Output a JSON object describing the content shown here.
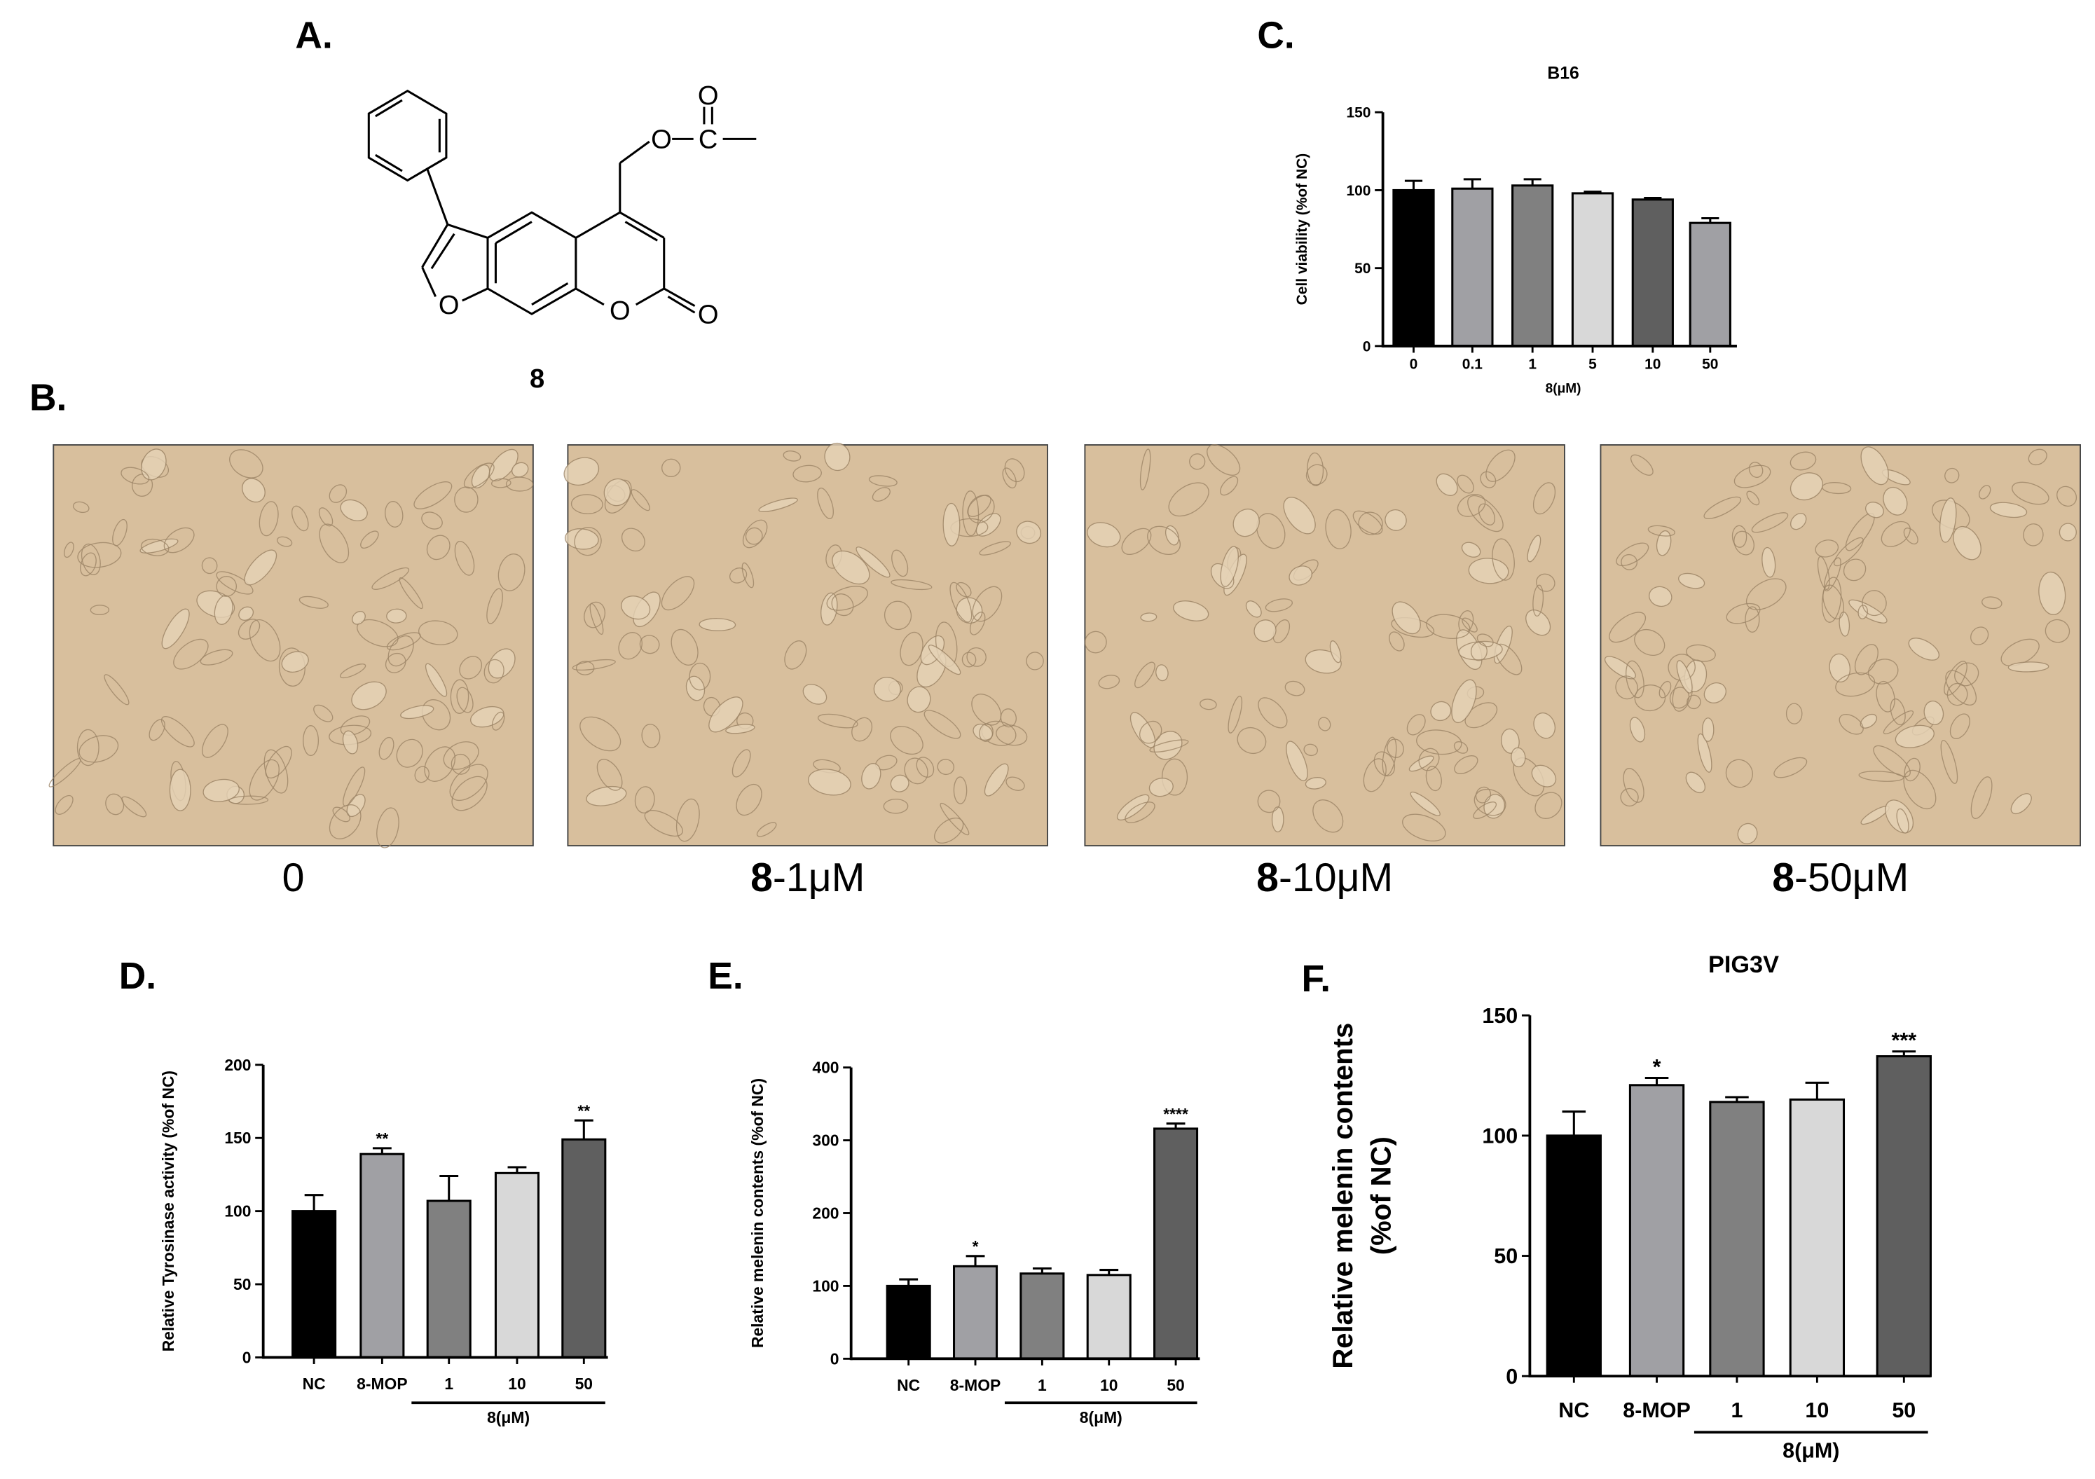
{
  "panels": {
    "A": {
      "label": "A.",
      "compound": "8",
      "atoms": [
        "O",
        "C",
        "O",
        "O",
        "O",
        "O"
      ]
    },
    "B": {
      "label": "B.",
      "images": [
        {
          "label": "0"
        },
        {
          "compound": "8",
          "dose": "-1μM"
        },
        {
          "compound": "8",
          "dose": "-10μM"
        },
        {
          "compound": "8",
          "dose": "-50μM"
        }
      ]
    }
  },
  "chart_data": [
    {
      "type": "bar",
      "panel_label": "C.",
      "title": "B16",
      "y_label": "Cell viability (%of NC)",
      "x_label": "8(μM)",
      "categories": [
        "0",
        "0.1",
        "1",
        "5",
        "10",
        "50"
      ],
      "values": [
        100,
        101,
        103,
        98,
        94,
        79
      ],
      "errors": [
        6,
        6,
        4,
        1,
        1,
        3
      ],
      "colors": [
        "#000000",
        "#a0a0a4",
        "#808080",
        "#d8d8d8",
        "#5f5f5f",
        "#a0a0a4"
      ],
      "ylim": [
        0,
        150
      ],
      "yticks": [
        0,
        50,
        100,
        150
      ]
    },
    {
      "type": "bar",
      "panel_label": "D.",
      "y_label": "Relative Tyrosinase activity (%of NC)",
      "group_label": "8(μM)",
      "categories": [
        "NC",
        "8-MOP",
        "1",
        "10",
        "50"
      ],
      "values": [
        100,
        139,
        107,
        126,
        149
      ],
      "errors": [
        11,
        4,
        17,
        4,
        13
      ],
      "annotations": [
        null,
        "**",
        null,
        null,
        "**"
      ],
      "colors": [
        "#000000",
        "#a0a0a4",
        "#808080",
        "#d8d8d8",
        "#5f5f5f"
      ],
      "ylim": [
        0,
        200
      ],
      "yticks": [
        0,
        50,
        100,
        150,
        200
      ]
    },
    {
      "type": "bar",
      "panel_label": "E.",
      "y_label": "Relative melenin contents (%of NC)",
      "group_label": "8(μM)",
      "categories": [
        "NC",
        "8-MOP",
        "1",
        "10",
        "50"
      ],
      "values": [
        100,
        127,
        117,
        115,
        316
      ],
      "errors": [
        9,
        14,
        7,
        7,
        7
      ],
      "annotations": [
        null,
        "*",
        null,
        null,
        "****"
      ],
      "colors": [
        "#000000",
        "#a0a0a4",
        "#808080",
        "#d8d8d8",
        "#5f5f5f"
      ],
      "ylim": [
        0,
        400
      ],
      "yticks": [
        0,
        100,
        200,
        300,
        400
      ]
    },
    {
      "type": "bar",
      "panel_label": "F.",
      "title": "PIG3V",
      "y_label": [
        "Relative melenin contents",
        "(%of NC)"
      ],
      "group_label": "8(μM)",
      "categories": [
        "NC",
        "8-MOP",
        "1",
        "10",
        "50"
      ],
      "values": [
        100,
        121,
        114,
        115,
        133
      ],
      "errors": [
        10,
        3,
        2,
        7,
        2
      ],
      "annotations": [
        null,
        "*",
        null,
        null,
        "***"
      ],
      "colors": [
        "#000000",
        "#a0a0a4",
        "#808080",
        "#d8d8d8",
        "#5f5f5f"
      ],
      "ylim": [
        0,
        150
      ],
      "yticks": [
        0,
        50,
        100,
        150
      ]
    }
  ]
}
